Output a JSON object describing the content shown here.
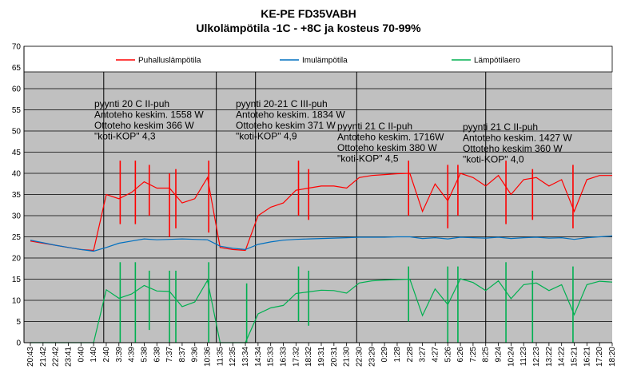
{
  "chart_data": {
    "type": "line",
    "title": "KE-PE FD35VABH",
    "subtitle": "Ulkolämpötila  -1C - +8C ja kosteus 70-99%",
    "xlabel": "",
    "ylabel": "",
    "ylim": [
      0,
      70
    ],
    "ymajor": 5,
    "grid": true,
    "legend_position": "top",
    "plot_background": "#c0c0c0",
    "legend": [
      "Puhalluslämpötila",
      "Imulämpötila",
      "Lämpötilaero"
    ],
    "yticks": [
      "0",
      "5",
      "10",
      "15",
      "20",
      "25",
      "30",
      "35",
      "40",
      "45",
      "50",
      "55",
      "60",
      "65",
      "70"
    ],
    "xticks": [
      "20:43",
      "21:42",
      "22:42",
      "23:41",
      "0:40",
      "1:40",
      "2:40",
      "3:39",
      "4:39",
      "5:38",
      "6:38",
      "7:37",
      "8:37",
      "9:36",
      "10:36",
      "11:35",
      "12:35",
      "13:34",
      "14:34",
      "15:33",
      "16:33",
      "17:32",
      "18:32",
      "19:31",
      "20:31",
      "21:30",
      "22:30",
      "23:29",
      "0:29",
      "1:28",
      "2:28",
      "3:27",
      "4:27",
      "5:26",
      "6:26",
      "7:25",
      "8:25",
      "9:24",
      "10:24",
      "11:23",
      "12:23",
      "13:22",
      "14:22",
      "15:21",
      "16:21",
      "17:20",
      "18:20"
    ],
    "periods": [
      {
        "label": "pyynti 20 C II-puh",
        "line2": "Antoteho keskim. 1558 W",
        "line3": "Ottoteho keskim 366 W",
        "line4": "\"koti-KOP\" 4,3"
      },
      {
        "label": "pyynti 20-21 C III-puh",
        "line2": "Antoteho keskim. 1834 W",
        "line3": "Ottoteho keskim 371 W",
        "line4": "\"koti-KOP\" 4,9"
      },
      {
        "label": "pyynti 21 C II-puh",
        "line2": "Antoteho keskim. 1716W",
        "line3": "Ottoteho keskim 380 W",
        "line4": "\"koti-KOP\" 4,5"
      },
      {
        "label": "pyynti 21 C II-puh",
        "line2": "Antoteho keskim. 1427 W",
        "line3": "Ottoteho keskim 360 W",
        "line4": "\"koti-KOP\" 4,0"
      }
    ],
    "series": [
      {
        "name": "Puhalluslämpötila",
        "color": "#ff0000",
        "values": [
          24.0,
          23.5,
          23.0,
          22.5,
          22.0,
          21.8,
          35.0,
          34.0,
          35.5,
          38.0,
          36.5,
          36.5,
          33.0,
          34.0,
          39.0,
          22.5,
          22.0,
          21.8,
          30.0,
          32.0,
          33.0,
          36.0,
          36.5,
          37.0,
          37.0,
          36.5,
          39.0,
          39.5,
          39.7,
          39.9,
          40.0,
          31.0,
          37.5,
          33.5,
          40.0,
          39.0,
          37.0,
          39.5,
          35.0,
          38.5,
          39.0,
          37.0,
          38.5,
          31.0,
          38.5,
          39.5,
          39.5
        ]
      },
      {
        "name": "Imulämpötila",
        "color": "#0070c0",
        "values": [
          24.2,
          23.6,
          23.0,
          22.5,
          22.0,
          21.6,
          22.5,
          23.5,
          24.0,
          24.5,
          24.3,
          24.4,
          24.5,
          24.4,
          24.3,
          22.8,
          22.3,
          22.0,
          23.2,
          23.8,
          24.2,
          24.4,
          24.5,
          24.6,
          24.7,
          24.8,
          24.9,
          24.9,
          24.9,
          25.0,
          25.0,
          24.6,
          24.8,
          24.5,
          24.9,
          24.8,
          24.7,
          24.9,
          24.6,
          24.8,
          24.9,
          24.7,
          24.8,
          24.4,
          24.8,
          25.0,
          25.2
        ]
      },
      {
        "name": "Lämpötilaero",
        "color": "#00b050",
        "values": [
          0,
          0,
          0,
          0,
          0,
          0,
          12.5,
          10.5,
          11.5,
          13.5,
          12.2,
          12.1,
          8.5,
          9.6,
          14.7,
          0,
          0,
          0,
          6.8,
          8.2,
          8.8,
          11.6,
          12.0,
          12.4,
          12.3,
          11.7,
          14.1,
          14.6,
          14.8,
          14.9,
          15.0,
          6.4,
          12.7,
          9.0,
          15.1,
          14.2,
          12.3,
          14.6,
          10.4,
          13.7,
          14.1,
          12.3,
          13.7,
          6.6,
          13.7,
          14.5,
          14.3
        ]
      }
    ],
    "spikes": [
      {
        "series": 0,
        "x": 7.1,
        "low": 28,
        "high": 43
      },
      {
        "series": 0,
        "x": 8.3,
        "low": 28,
        "high": 43
      },
      {
        "series": 0,
        "x": 9.4,
        "low": 30,
        "high": 42
      },
      {
        "series": 0,
        "x": 11.0,
        "low": 25,
        "high": 40
      },
      {
        "series": 0,
        "x": 11.5,
        "low": 27,
        "high": 41
      },
      {
        "series": 0,
        "x": 14.1,
        "low": 26,
        "high": 43
      },
      {
        "series": 0,
        "x": 21.2,
        "low": 30,
        "high": 43
      },
      {
        "series": 0,
        "x": 22.0,
        "low": 29,
        "high": 41
      },
      {
        "series": 0,
        "x": 29.9,
        "low": 30,
        "high": 43
      },
      {
        "series": 0,
        "x": 33.0,
        "low": 27,
        "high": 42
      },
      {
        "series": 0,
        "x": 33.8,
        "low": 30,
        "high": 42
      },
      {
        "series": 0,
        "x": 37.6,
        "low": 28,
        "high": 43
      },
      {
        "series": 0,
        "x": 39.7,
        "low": 29,
        "high": 41
      },
      {
        "series": 0,
        "x": 42.9,
        "low": 27,
        "high": 42
      },
      {
        "series": 2,
        "x": 7.1,
        "low": 0,
        "high": 19
      },
      {
        "series": 2,
        "x": 8.3,
        "low": 0,
        "high": 19
      },
      {
        "series": 2,
        "x": 9.4,
        "low": 3,
        "high": 17
      },
      {
        "series": 2,
        "x": 11.0,
        "low": 0,
        "high": 17
      },
      {
        "series": 2,
        "x": 11.5,
        "low": 0,
        "high": 17
      },
      {
        "series": 2,
        "x": 14.1,
        "low": 0,
        "high": 19
      },
      {
        "series": 2,
        "x": 17.1,
        "low": 0,
        "high": 14
      },
      {
        "series": 2,
        "x": 21.2,
        "low": 5,
        "high": 18
      },
      {
        "series": 2,
        "x": 22.0,
        "low": 4,
        "high": 17
      },
      {
        "series": 2,
        "x": 29.9,
        "low": 5,
        "high": 18
      },
      {
        "series": 2,
        "x": 33.0,
        "low": 0,
        "high": 18
      },
      {
        "series": 2,
        "x": 33.8,
        "low": 0,
        "high": 18
      },
      {
        "series": 2,
        "x": 37.6,
        "low": 0,
        "high": 19
      },
      {
        "series": 2,
        "x": 39.7,
        "low": 0,
        "high": 17
      },
      {
        "series": 2,
        "x": 42.9,
        "low": 0,
        "high": 18
      }
    ],
    "dividers": [
      5.8,
      14.7,
      17.8,
      25.8,
      36.0
    ]
  }
}
